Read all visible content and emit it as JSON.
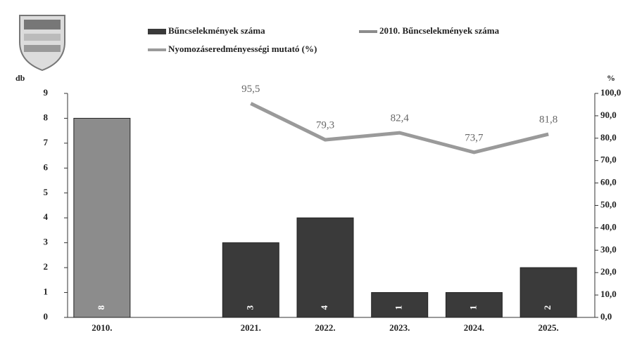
{
  "chart_data": {
    "type": "bar",
    "categories": [
      "2010.",
      null,
      "2021.",
      "2022.",
      "2023.",
      "2024.",
      "2025."
    ],
    "series": [
      {
        "name": "Bűncselekmények száma",
        "color": "#3a3a3a",
        "values": [
          null,
          null,
          3,
          4,
          1,
          1,
          2
        ]
      },
      {
        "name": "2010. Bűncselekmények száma",
        "color": "#8c8c8c",
        "values": [
          8,
          null,
          null,
          null,
          null,
          null,
          null
        ]
      },
      {
        "name": "Nyomozáseredményességi mutató (%)",
        "color": "#9a9a9a",
        "type": "line",
        "axis": "y2",
        "values": [
          null,
          null,
          95.5,
          79.3,
          82.4,
          73.7,
          81.8
        ],
        "value_labels": [
          null,
          null,
          "95,5",
          "79,3",
          "82,4",
          "73,7",
          "81,8"
        ]
      }
    ],
    "y_label": "db",
    "y2_label": "%",
    "ylim": [
      0,
      9
    ],
    "yticks": [
      0,
      1,
      2,
      3,
      4,
      5,
      6,
      7,
      8,
      9
    ],
    "y2lim": [
      0,
      100
    ],
    "y2ticks": [
      {
        "value": 0,
        "label": "0,0"
      },
      {
        "value": 10,
        "label": "10,0"
      },
      {
        "value": 20,
        "label": "20,0"
      },
      {
        "value": 30,
        "label": "30,0"
      },
      {
        "value": 40,
        "label": "40,0"
      },
      {
        "value": 50,
        "label": "50,0"
      },
      {
        "value": 60,
        "label": "60,0"
      },
      {
        "value": 70,
        "label": "70,0"
      },
      {
        "value": 80,
        "label": "80,0"
      },
      {
        "value": 90,
        "label": "90,0"
      },
      {
        "value": 100,
        "label": "100,0"
      }
    ]
  }
}
